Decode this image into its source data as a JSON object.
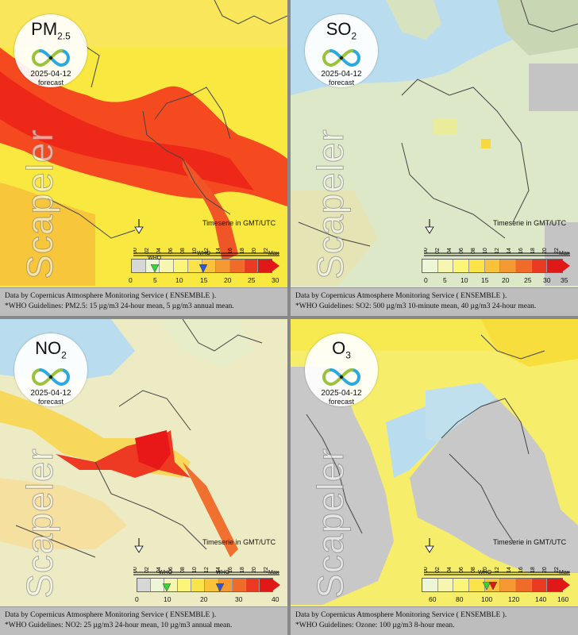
{
  "panels": [
    {
      "pollutant": "PM",
      "sub": "2.5",
      "date": "2025-04-12",
      "forecast": "forecast",
      "watermark": "Scapeler",
      "timeserie": "Timeserie in GMT/UTC",
      "hours": [
        "00",
        "02",
        "04",
        "06",
        "08",
        "10",
        "12",
        "14",
        "16",
        "18",
        "20",
        "22"
      ],
      "ticks": [
        "0",
        "5",
        "10",
        "15",
        "20",
        "25",
        "30"
      ],
      "max": "Max",
      "who1": "WHO",
      "who2": "WHO",
      "footer1": "Data by Copernicus Atmosphere Monitoring Service ( ENSEMBLE ).",
      "footer2": "*WHO Guidelines: PM2.5: 15 µg/m3 24-hour mean, 5 µg/m3 annual mean."
    },
    {
      "pollutant": "SO",
      "sub": "2",
      "date": "2025-04-12",
      "forecast": "forecast",
      "watermark": "Scapeler",
      "timeserie": "Timeserie in GMT/UTC",
      "hours": [
        "00",
        "02",
        "04",
        "06",
        "08",
        "10",
        "12",
        "14",
        "16",
        "18",
        "20",
        "22"
      ],
      "ticks": [
        "0",
        "5",
        "10",
        "15",
        "20",
        "25",
        "30",
        "35"
      ],
      "max": "Max",
      "footer1": "Data by Copernicus Atmosphere Monitoring Service ( ENSEMBLE ).",
      "footer2": "*WHO Guidelines: SO2: 500 µg/m3 10-minute mean, 40 µg/m3 24-hour mean."
    },
    {
      "pollutant": "NO",
      "sub": "2",
      "date": "2025-04-12",
      "forecast": "forecast",
      "watermark": "Scapeler",
      "timeserie": "Timeserie in GMT/UTC",
      "hours": [
        "00",
        "02",
        "04",
        "06",
        "08",
        "10",
        "12",
        "14",
        "16",
        "18",
        "20",
        "22"
      ],
      "ticks": [
        "0",
        "10",
        "20",
        "30",
        "40"
      ],
      "max": "Max",
      "who1": "WHO",
      "who2": "WHO",
      "footer1": "Data by Copernicus Atmosphere Monitoring Service ( ENSEMBLE ).",
      "footer2": "*WHO Guidelines: NO2: 25 µg/m3 24-hour mean, 10 µg/m3 annual mean."
    },
    {
      "pollutant": "O",
      "sub": "3",
      "date": "2025-04-12",
      "forecast": "forecast",
      "watermark": "Scapeler",
      "timeserie": "Timeserie in GMT/UTC",
      "hours": [
        "00",
        "02",
        "04",
        "06",
        "08",
        "10",
        "12",
        "14",
        "16",
        "18",
        "20",
        "22"
      ],
      "ticks": [
        "60",
        "80",
        "100",
        "120",
        "140",
        "160"
      ],
      "max": "Max",
      "who1": "WHO",
      "footer1": "Data by Copernicus Atmosphere Monitoring Service ( ENSEMBLE ).",
      "footer2": "*WHO Guidelines: Ozone: 100 µg/m3 8-hour mean."
    }
  ],
  "colors": {
    "sea": "#b9dcef",
    "nodata": "#c8c8c8",
    "border": "#444444",
    "scale": [
      "#d7d7d7",
      "#eef6d8",
      "#f6f6b0",
      "#fbf57a",
      "#fbe34a",
      "#f8c23a",
      "#f59a32",
      "#f06a2a",
      "#ea3a22",
      "#e01818"
    ]
  }
}
